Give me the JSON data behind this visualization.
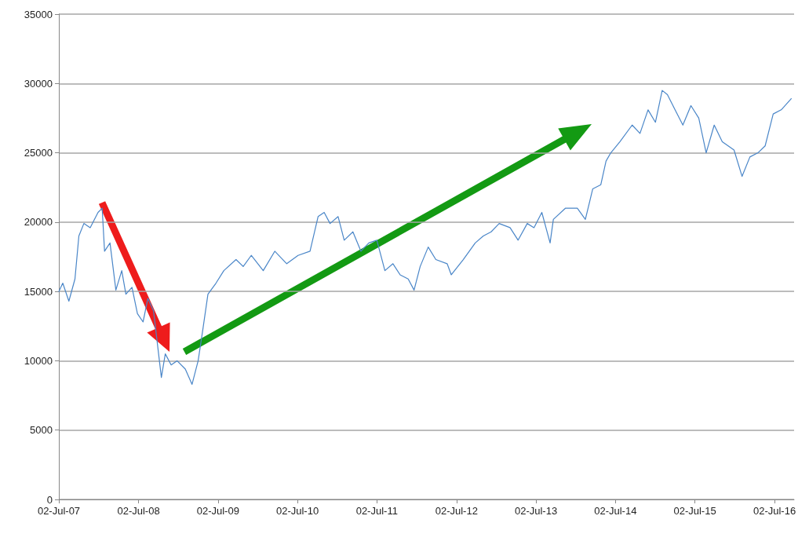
{
  "chart_data": {
    "type": "line",
    "x": [
      "2007-07-02",
      "2007-07-20",
      "2007-08-17",
      "2007-09-14",
      "2007-10-02",
      "2007-10-25",
      "2007-11-23",
      "2007-12-29",
      "2008-01-17",
      "2008-01-28",
      "2008-02-22",
      "2008-03-20",
      "2008-04-16",
      "2008-05-05",
      "2008-06-02",
      "2008-06-27",
      "2008-07-23",
      "2008-08-14",
      "2008-09-09",
      "2008-10-15",
      "2008-11-02",
      "2008-11-29",
      "2008-12-26",
      "2009-02-02",
      "2009-03-05",
      "2009-04-02",
      "2009-04-23",
      "2009-05-17",
      "2009-06-23",
      "2009-07-29",
      "2009-09-23",
      "2009-10-26",
      "2009-12-02",
      "2010-01-26",
      "2010-03-20",
      "2010-05-14",
      "2010-07-05",
      "2010-08-29",
      "2010-10-05",
      "2010-11-02",
      "2010-11-29",
      "2011-01-05",
      "2011-02-02",
      "2011-03-14",
      "2011-04-20",
      "2011-05-26",
      "2011-07-02",
      "2011-08-08",
      "2011-09-14",
      "2011-10-17",
      "2011-11-23",
      "2011-12-20",
      "2012-01-17",
      "2012-02-23",
      "2012-03-29",
      "2012-05-20",
      "2012-06-08",
      "2012-08-02",
      "2012-09-26",
      "2012-11-02",
      "2012-12-08",
      "2013-01-14",
      "2013-03-05",
      "2013-04-11",
      "2013-05-23",
      "2013-06-23",
      "2013-07-29",
      "2013-09-05",
      "2013-09-20",
      "2013-11-14",
      "2014-01-08",
      "2014-02-14",
      "2014-03-20",
      "2014-04-26",
      "2014-05-20",
      "2014-06-11",
      "2014-07-23",
      "2014-09-17",
      "2014-10-23",
      "2014-11-29",
      "2015-01-02",
      "2015-02-02",
      "2015-02-26",
      "2015-04-02",
      "2015-05-08",
      "2015-06-14",
      "2015-07-20",
      "2015-08-23",
      "2015-09-29",
      "2015-11-05",
      "2015-12-29",
      "2016-02-04",
      "2016-03-11",
      "2016-04-17",
      "2016-05-20",
      "2016-06-26",
      "2016-08-02",
      "2016-09-17"
    ],
    "series": [
      {
        "color": "#4a86c8",
        "values": [
          15000,
          15600,
          14300,
          15900,
          19000,
          19900,
          19600,
          20700,
          21000,
          17900,
          18500,
          15100,
          16500,
          14800,
          15300,
          13400,
          12800,
          14500,
          13600,
          8800,
          10500,
          9700,
          10000,
          9400,
          8300,
          10000,
          12200,
          14800,
          15600,
          16500,
          17300,
          16800,
          17600,
          16500,
          17900,
          17000,
          17600,
          17900,
          20400,
          20700,
          19900,
          20400,
          18700,
          19300,
          17900,
          18500,
          18700,
          16500,
          17000,
          16200,
          15900,
          15100,
          16800,
          18200,
          17300,
          17000,
          16200,
          17300,
          18500,
          19000,
          19300,
          19900,
          19600,
          18700,
          19900,
          19600,
          20700,
          18500,
          20200,
          21000,
          21000,
          20200,
          22400,
          22700,
          24400,
          25000,
          25800,
          27000,
          26400,
          28100,
          27200,
          29500,
          29200,
          28100,
          27000,
          28400,
          27500,
          25000,
          27000,
          25800,
          25200,
          23300,
          24700,
          25000,
          25500,
          27800,
          28100,
          28900
        ]
      }
    ],
    "xlim": [
      "2007-07-02",
      "2016-09-30"
    ],
    "xticks": [
      {
        "value": "2007-07-02",
        "label": "02-Jul-07"
      },
      {
        "value": "2008-07-02",
        "label": "02-Jul-08"
      },
      {
        "value": "2009-07-02",
        "label": "02-Jul-09"
      },
      {
        "value": "2010-07-02",
        "label": "02-Jul-10"
      },
      {
        "value": "2011-07-02",
        "label": "02-Jul-11"
      },
      {
        "value": "2012-07-02",
        "label": "02-Jul-12"
      },
      {
        "value": "2013-07-02",
        "label": "02-Jul-13"
      },
      {
        "value": "2014-07-02",
        "label": "02-Jul-14"
      },
      {
        "value": "2015-07-02",
        "label": "02-Jul-15"
      },
      {
        "value": "2016-07-02",
        "label": "02-Jul-16"
      }
    ],
    "ylim": [
      0,
      35000
    ],
    "yticks": [
      0,
      5000,
      10000,
      15000,
      20000,
      25000,
      30000,
      35000
    ],
    "grid": "y",
    "marker": "none",
    "line_style": "solid"
  }
}
